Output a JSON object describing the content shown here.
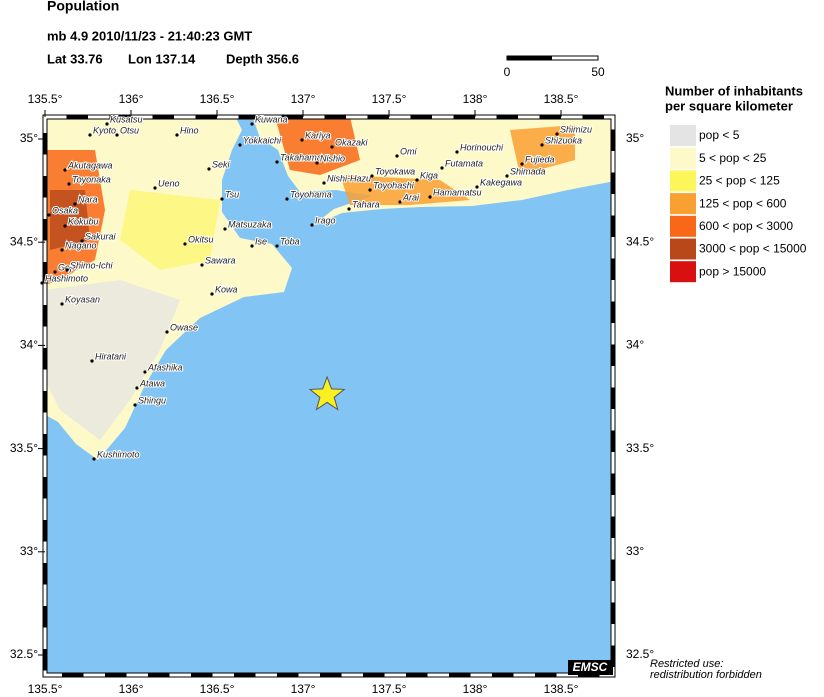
{
  "header": {
    "title": "Population",
    "event": "mb 4.9  2010/11/23 - 21:40:23 GMT",
    "lat": "Lat 33.76",
    "lon": "Lon 137.14",
    "depth": "Depth 356.6"
  },
  "epicenter": {
    "lat": 33.76,
    "lon": 137.14
  },
  "scale_bar": {
    "labels": [
      0,
      50
    ]
  },
  "xticks": [
    {
      "value": 135.5,
      "label": "135.5°"
    },
    {
      "value": 136,
      "label": "136°"
    },
    {
      "value": 136.5,
      "label": "136.5°"
    },
    {
      "value": 137,
      "label": "137°"
    },
    {
      "value": 137.5,
      "label": "137.5°"
    },
    {
      "value": 138,
      "label": "138°"
    },
    {
      "value": 138.5,
      "label": "138.5°"
    }
  ],
  "yticks": [
    {
      "value": 35,
      "label": "35°"
    },
    {
      "value": 34.5,
      "label": "34.5°"
    },
    {
      "value": 34,
      "label": "34°"
    },
    {
      "value": 33.5,
      "label": "33.5°"
    },
    {
      "value": 33,
      "label": "33°"
    },
    {
      "value": 32.5,
      "label": "32.5°"
    }
  ],
  "legend": {
    "title": [
      "Number of inhabitants",
      "per square kilometer"
    ],
    "entries": [
      {
        "label": "pop < 5",
        "color": "#e4e4e4"
      },
      {
        "label": "5 < pop < 25",
        "color": "#fdf9c8"
      },
      {
        "label": "25 < pop < 125",
        "color": "#fdf65a"
      },
      {
        "label": "125 < pop < 600",
        "color": "#f9a032"
      },
      {
        "label": "600 < pop < 3000",
        "color": "#f86818"
      },
      {
        "label": "3000 < pop < 15000",
        "color": "#b8481a"
      },
      {
        "label": "pop > 15000",
        "color": "#d81010"
      }
    ]
  },
  "cities": [
    "Kusatsu",
    "Kyoto",
    "Otsu",
    "Hino",
    "Kuwana",
    "Yokkaichi",
    "Kariya",
    "Okazaki",
    "Omi",
    "Horinouchi",
    "Shimizu",
    "Shizuoka",
    "Takahama",
    "Nishio",
    "Akutagawa",
    "Seki",
    "Futamata",
    "Fujieda",
    "Shimada",
    "Toyonaka",
    "Nara",
    "Ueno",
    "Nishi-Hazu",
    "Toyokawa",
    "Kiga",
    "Toyohashi",
    "Hamamatsu",
    "Kakegawa",
    "Tsu",
    "Toyohama",
    "Tahara",
    "Arai",
    "Osaka",
    "Kokubu",
    "Matsuzaka",
    "Irago",
    "Sakurai",
    "Okitsu",
    "Ise",
    "Toba",
    "Nagano",
    "Gojo",
    "Shimo-Ichi",
    "Sawara",
    "Hashimoto",
    "Kowa",
    "Koyasan",
    "Owase",
    "Hiratani",
    "Afashika",
    "Atawa",
    "Shingu",
    "Kushimoto"
  ],
  "logo": "EMSC",
  "notice": [
    "Restricted use:",
    "redistribution forbidden"
  ]
}
